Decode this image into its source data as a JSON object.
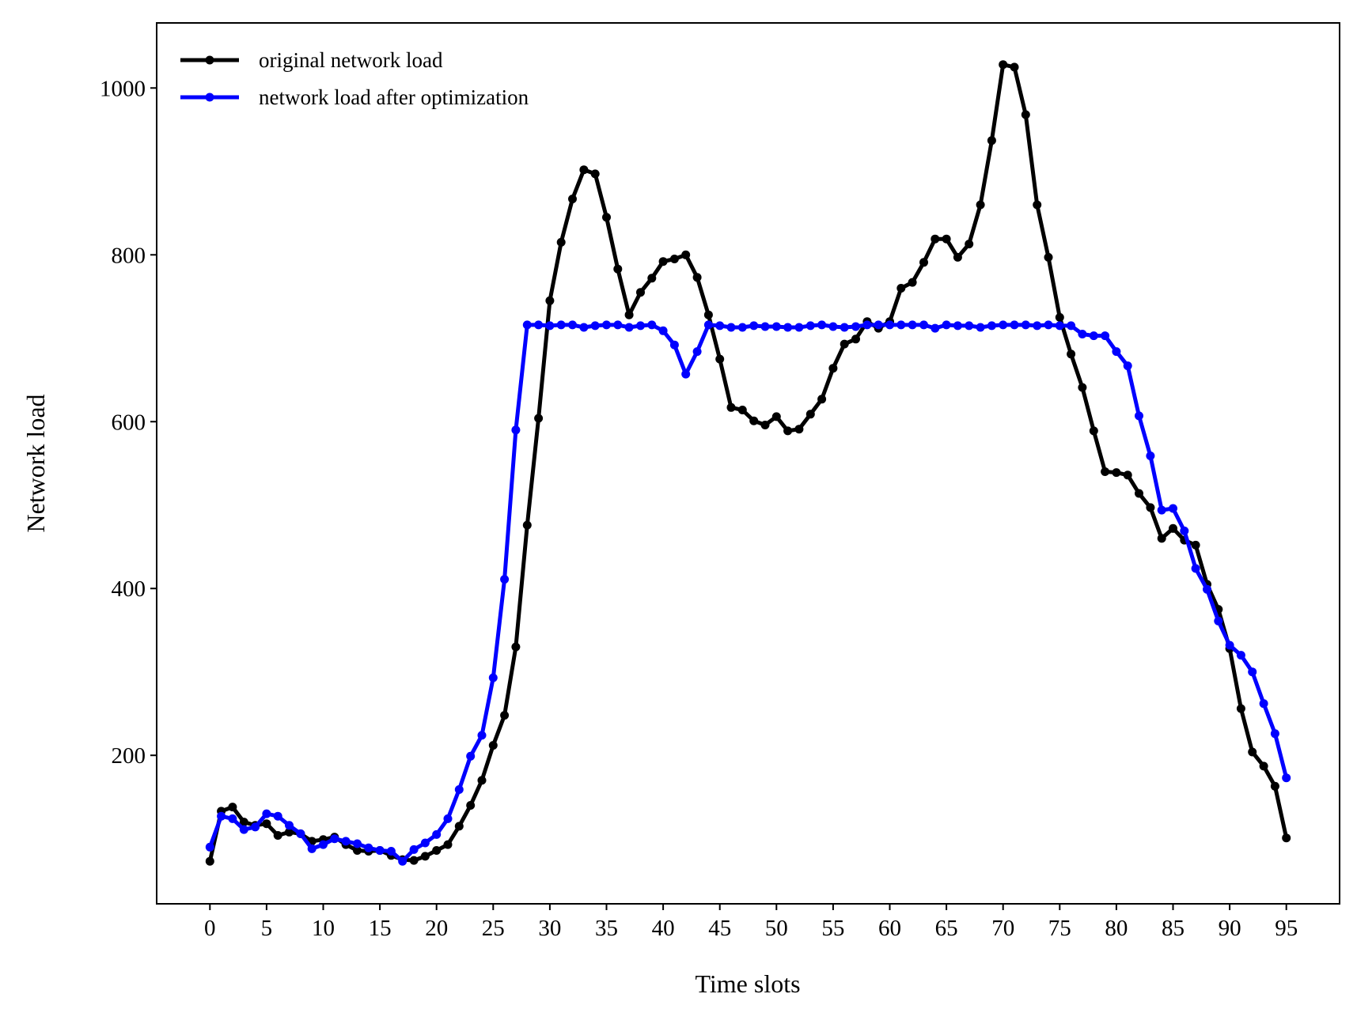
{
  "chart_data": {
    "type": "line",
    "xlabel": "Time slots",
    "ylabel": "Network load",
    "xlim": [
      -4.7,
      99.7
    ],
    "ylim": [
      22,
      1078
    ],
    "xticks": [
      0,
      5,
      10,
      15,
      20,
      25,
      30,
      35,
      40,
      45,
      50,
      55,
      60,
      65,
      70,
      75,
      80,
      85,
      90,
      95
    ],
    "yticks": [
      200,
      400,
      600,
      800,
      1000
    ],
    "grid": false,
    "legend": {
      "position": "top-left"
    },
    "x": [
      0,
      1,
      2,
      3,
      4,
      5,
      6,
      7,
      8,
      9,
      10,
      11,
      12,
      13,
      14,
      15,
      16,
      17,
      18,
      19,
      20,
      21,
      22,
      23,
      24,
      25,
      26,
      27,
      28,
      29,
      30,
      31,
      32,
      33,
      34,
      35,
      36,
      37,
      38,
      39,
      40,
      41,
      42,
      43,
      44,
      45,
      46,
      47,
      48,
      49,
      50,
      51,
      52,
      53,
      54,
      55,
      56,
      57,
      58,
      59,
      60,
      61,
      62,
      63,
      64,
      65,
      66,
      67,
      68,
      69,
      70,
      71,
      72,
      73,
      74,
      75,
      76,
      77,
      78,
      79,
      80,
      81,
      82,
      83,
      84,
      85,
      86,
      87,
      88,
      89,
      90,
      91,
      92,
      93,
      94,
      95
    ],
    "series": [
      {
        "name": "original network load",
        "color": "#000000",
        "values": [
          73,
          133,
          138,
          120,
          116,
          118,
          104,
          108,
          106,
          97,
          99,
          102,
          93,
          86,
          85,
          86,
          80,
          75,
          74,
          79,
          86,
          93,
          115,
          140,
          170,
          212,
          248,
          330,
          476,
          604,
          745,
          815,
          867,
          902,
          897,
          845,
          783,
          728,
          755,
          772,
          792,
          795,
          800,
          773,
          728,
          675,
          617,
          614,
          601,
          596,
          606,
          589,
          591,
          609,
          627,
          664,
          693,
          699,
          720,
          712,
          720,
          760,
          767,
          791,
          819,
          819,
          797,
          813,
          860,
          937,
          1028,
          1025,
          968,
          860,
          797,
          725,
          681,
          641,
          589,
          540,
          539,
          536,
          514,
          497,
          460,
          472,
          458,
          452,
          405,
          375,
          328,
          256,
          204,
          187,
          163,
          101
        ]
      },
      {
        "name": "network load after optimization",
        "color": "#0000ff",
        "values": [
          90,
          127,
          124,
          111,
          114,
          130,
          127,
          116,
          106,
          88,
          93,
          100,
          97,
          94,
          89,
          86,
          85,
          73,
          87,
          95,
          105,
          124,
          159,
          199,
          224,
          293,
          411,
          590,
          716,
          716,
          715,
          716,
          716,
          713,
          715,
          716,
          716,
          713,
          715,
          716,
          709,
          692,
          657,
          684,
          716,
          715,
          713,
          713,
          715,
          714,
          714,
          713,
          713,
          715,
          716,
          714,
          713,
          714,
          716,
          716,
          716,
          716,
          716,
          716,
          712,
          716,
          715,
          715,
          713,
          715,
          716,
          716,
          716,
          715,
          716,
          715,
          715,
          705,
          703,
          703,
          684,
          667,
          607,
          559,
          494,
          496,
          469,
          424,
          399,
          361,
          332,
          320,
          300,
          262,
          226,
          173
        ]
      }
    ]
  }
}
